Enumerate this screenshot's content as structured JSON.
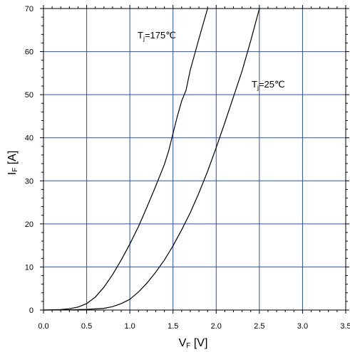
{
  "chart_data": {
    "type": "line",
    "xlabel": {
      "main": "V",
      "sub": "F",
      "unit": " [V]"
    },
    "ylabel": {
      "main": "I",
      "sub": "F",
      "unit": " [A]"
    },
    "xlim": [
      0,
      3.5
    ],
    "ylim": [
      0,
      70
    ],
    "x_ticks": [
      0,
      0.5,
      1.0,
      1.5,
      2.0,
      2.5,
      3.0,
      3.5
    ],
    "x_tick_labels": [
      "0.0",
      "0.5",
      "1.0",
      "1.5",
      "2.0",
      "2.5",
      "3.0",
      "3.5"
    ],
    "y_ticks": [
      0,
      10,
      20,
      30,
      40,
      50,
      60,
      70
    ],
    "y_tick_labels": [
      "0",
      "10",
      "20",
      "30",
      "40",
      "50",
      "60",
      "70"
    ],
    "grid": true,
    "colors": {
      "grid": "#2a52a8",
      "line": "#000000",
      "axis": "#000000"
    },
    "series": [
      {
        "label": {
          "main": "T",
          "sub": "j",
          "rest": "=175℃"
        },
        "x": [
          0.0,
          0.2,
          0.3,
          0.4,
          0.5,
          0.6,
          0.7,
          0.8,
          0.9,
          1.0,
          1.1,
          1.2,
          1.3,
          1.4,
          1.45,
          1.5,
          1.55,
          1.6,
          1.65,
          1.7,
          1.8,
          1.9
        ],
        "y": [
          0,
          0.1,
          0.3,
          0.7,
          1.5,
          3,
          5.3,
          8.2,
          11.6,
          15.3,
          19.4,
          24,
          28.8,
          33.8,
          37,
          41,
          45,
          48.5,
          51,
          55.7,
          63,
          70
        ]
      },
      {
        "label": {
          "main": "T",
          "sub": "j",
          "rest": "=25℃"
        },
        "x": [
          0.0,
          0.3,
          0.5,
          0.7,
          0.8,
          0.9,
          1.0,
          1.1,
          1.2,
          1.3,
          1.4,
          1.5,
          1.6,
          1.7,
          1.8,
          1.9,
          2.0,
          2.1,
          2.2,
          2.3,
          2.4,
          2.5
        ],
        "y": [
          0,
          0.05,
          0.15,
          0.4,
          0.8,
          1.5,
          2.5,
          4.2,
          6.3,
          8.8,
          11.6,
          14.9,
          18.6,
          22.6,
          27.2,
          32.2,
          37.7,
          43.5,
          49.5,
          55.5,
          62.5,
          70
        ]
      }
    ]
  }
}
